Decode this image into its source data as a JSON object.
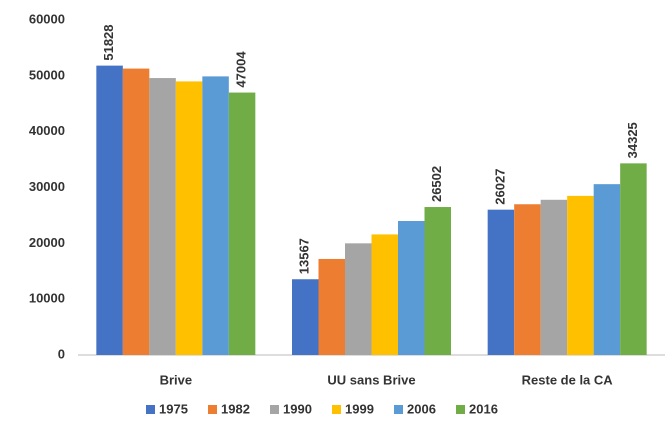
{
  "chart_data": {
    "type": "bar",
    "categories": [
      "Brive",
      "UU sans Brive",
      "Reste de la CA"
    ],
    "series": [
      {
        "name": "1975",
        "color": "#4472c4",
        "values": [
          51828,
          13567,
          26027
        ],
        "data_labels": true
      },
      {
        "name": "1982",
        "color": "#ed7d31",
        "values": [
          51300,
          17200,
          27000
        ]
      },
      {
        "name": "1990",
        "color": "#a5a5a5",
        "values": [
          49600,
          20000,
          27800
        ]
      },
      {
        "name": "1999",
        "color": "#ffc000",
        "values": [
          49000,
          21600,
          28500
        ]
      },
      {
        "name": "2006",
        "color": "#5b9bd5",
        "values": [
          49900,
          24000,
          30600
        ]
      },
      {
        "name": "2016",
        "color": "#70ad47",
        "values": [
          47004,
          26502,
          34325
        ],
        "data_labels": true
      }
    ],
    "ylim": [
      0,
      60000
    ],
    "yticks": [
      0,
      10000,
      20000,
      30000,
      40000,
      50000,
      60000
    ],
    "grid": false,
    "legend": "bottom"
  }
}
